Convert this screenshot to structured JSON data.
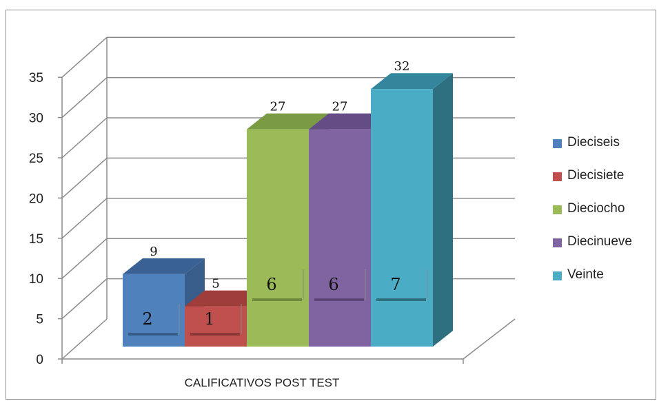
{
  "chart_data": {
    "type": "bar",
    "subtype": "3d-clustered-column",
    "xlabel": "CALIFICATIVOS POST TEST",
    "ylabel": "",
    "title": "",
    "ylim": [
      0,
      35
    ],
    "yticks": [
      0,
      5,
      10,
      15,
      20,
      25,
      30,
      35
    ],
    "grid": true,
    "legend_position": "right",
    "series": [
      {
        "name": "Dieciseis",
        "value": 9,
        "inner_label": "2",
        "color": "#4f81bd",
        "side": "#385d8a",
        "top": "#3a6194"
      },
      {
        "name": "Diecisiete",
        "value": 5,
        "inner_label": "1",
        "color": "#c0504d",
        "side": "#8c3836",
        "top": "#9e3d3a"
      },
      {
        "name": "Dieciocho",
        "value": 27,
        "inner_label": "6",
        "color": "#9bbb59",
        "side": "#71893f",
        "top": "#7a9a43"
      },
      {
        "name": "Diecinueve",
        "value": 27,
        "inner_label": "6",
        "color": "#8064a2",
        "side": "#5c4776",
        "top": "#644c84"
      },
      {
        "name": "Veinte",
        "value": 32,
        "inner_label": "7",
        "color": "#4bacc6",
        "side": "#2e6f80",
        "top": "#33869c"
      }
    ]
  }
}
